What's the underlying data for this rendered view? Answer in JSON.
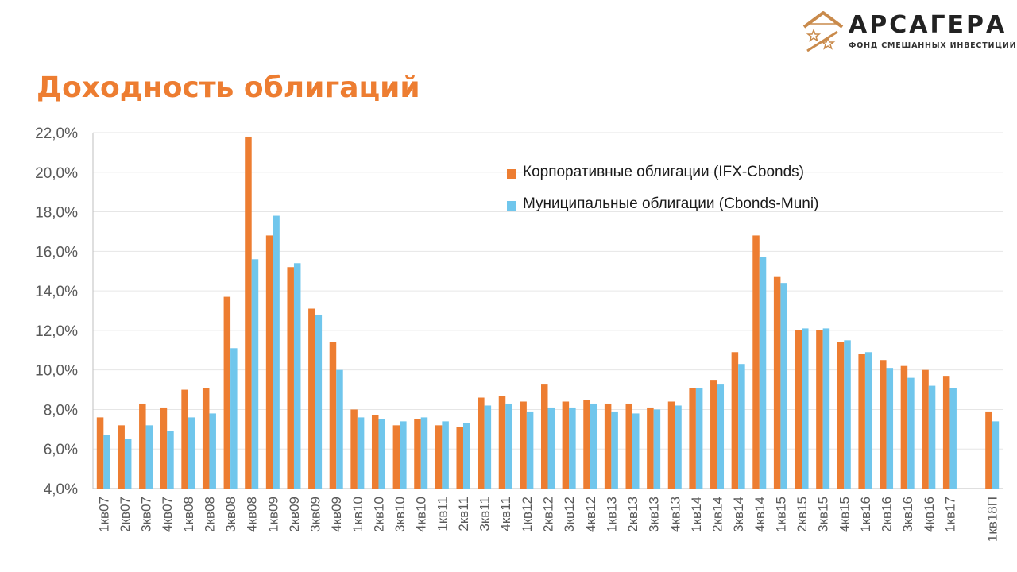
{
  "header": {
    "logo_name": "АРСАГЕРА",
    "logo_subtitle": "ФОНД СМЕШАННЫХ ИНВЕСТИЦИЙ",
    "logo_icon": "house-stars-icon",
    "title": "Доходность облигаций"
  },
  "colors": {
    "corporate": "#ed7d31",
    "municipal": "#70c6ec",
    "grid": "#e6e6e6",
    "axis_text": "#595959"
  },
  "chart_data": {
    "type": "bar",
    "title": "Доходность облигаций",
    "xlabel": "",
    "ylabel": "",
    "ylim": [
      4,
      22
    ],
    "y_ticks": [
      "4,0%",
      "6,0%",
      "8,0%",
      "10,0%",
      "12,0%",
      "14,0%",
      "16,0%",
      "18,0%",
      "20,0%",
      "22,0%"
    ],
    "grid": true,
    "legend_position": "top-right",
    "categories": [
      "1кв07",
      "2кв07",
      "3кв07",
      "4кв07",
      "1кв08",
      "2кв08",
      "3кв08",
      "4кв08",
      "1кв09",
      "2кв09",
      "3кв09",
      "4кв09",
      "1кв10",
      "2кв10",
      "3кв10",
      "4кв10",
      "1кв11",
      "2кв11",
      "3кв11",
      "4кв11",
      "1кв12",
      "2кв12",
      "3кв12",
      "4кв12",
      "1кв13",
      "2кв13",
      "3кв13",
      "4кв13",
      "1кв14",
      "2кв14",
      "3кв14",
      "4кв14",
      "1кв15",
      "2кв15",
      "3кв15",
      "4кв15",
      "1кв16",
      "2кв16",
      "3кв16",
      "4кв16",
      "1кв17",
      "",
      "1кв18П"
    ],
    "series": [
      {
        "name": "Корпоративные облигации (IFX-Cbonds)",
        "values": [
          7.6,
          7.2,
          8.3,
          8.1,
          9.0,
          9.1,
          13.7,
          21.8,
          16.8,
          15.2,
          13.1,
          11.4,
          8.0,
          7.7,
          7.2,
          7.5,
          7.2,
          7.1,
          8.6,
          8.7,
          8.4,
          9.3,
          8.4,
          8.5,
          8.3,
          8.3,
          8.1,
          8.4,
          9.1,
          9.5,
          10.9,
          16.8,
          14.7,
          12.0,
          12.0,
          11.4,
          10.8,
          10.5,
          10.2,
          10.0,
          9.7,
          null,
          7.9
        ]
      },
      {
        "name": "Муниципальные облигации (Cbonds-Muni)",
        "values": [
          6.7,
          6.5,
          7.2,
          6.9,
          7.6,
          7.8,
          11.1,
          15.6,
          17.8,
          15.4,
          12.8,
          10.0,
          7.6,
          7.5,
          7.4,
          7.6,
          7.4,
          7.3,
          8.2,
          8.3,
          7.9,
          8.1,
          8.1,
          8.3,
          7.9,
          7.8,
          8.0,
          8.2,
          9.1,
          9.3,
          10.3,
          15.7,
          14.4,
          12.1,
          12.1,
          11.5,
          10.9,
          10.1,
          9.6,
          9.2,
          9.1,
          null,
          7.4
        ]
      }
    ]
  }
}
